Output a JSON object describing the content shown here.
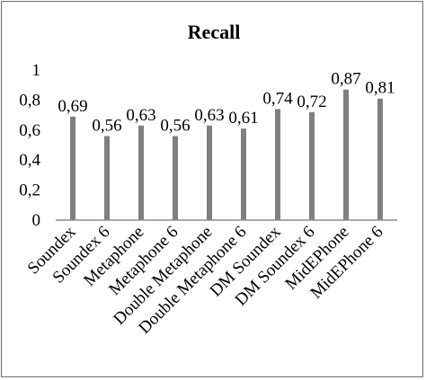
{
  "chart_data": {
    "type": "bar",
    "title": "Recall",
    "categories": [
      "Soundex",
      "Soundex 6",
      "Metaphone",
      "Metaphone 6",
      "Double Metaphone",
      "Double Metaphone 6",
      "DM Soundex",
      "DM Soundex 6",
      "MidEPhone",
      "MidEPhone 6"
    ],
    "values": [
      0.69,
      0.56,
      0.63,
      0.56,
      0.63,
      0.61,
      0.74,
      0.72,
      0.87,
      0.81
    ],
    "value_labels": [
      "0,69",
      "0,56",
      "0,63",
      "0,56",
      "0,63",
      "0,61",
      "0,74",
      "0,72",
      "0,87",
      "0,81"
    ],
    "y_ticks": [
      0,
      0.2,
      0.4,
      0.6,
      0.8,
      1
    ],
    "y_tick_labels": [
      "0",
      "0,2",
      "0,4",
      "0,6",
      "0,8",
      "1"
    ],
    "ylim": [
      0,
      1
    ],
    "xlabel": "",
    "ylabel": "",
    "grid": false,
    "legend": false,
    "bar_color": "#7f7f7f",
    "axis_color": "#8c8c8c"
  }
}
